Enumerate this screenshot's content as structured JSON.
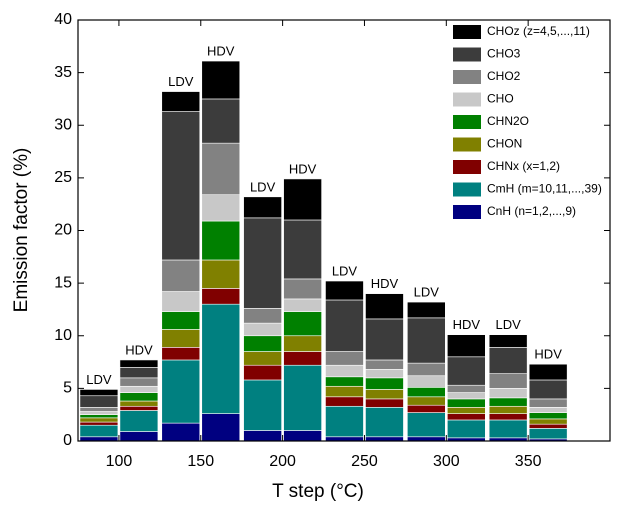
{
  "chart_data": {
    "type": "stacked-bar",
    "x_label": "T step (°C)",
    "y_label": "Emission factor (%)",
    "x": [
      100,
      100,
      150,
      150,
      200,
      200,
      250,
      250,
      300,
      300,
      350,
      350
    ],
    "bar_labels": [
      "LDV",
      "HDV",
      "LDV",
      "HDV",
      "LDV",
      "HDV",
      "LDV",
      "HDV",
      "LDV",
      "HDV",
      "LDV",
      "HDV"
    ],
    "xlim": [
      75,
      400
    ],
    "xticks": [
      100,
      150,
      200,
      250,
      300,
      350
    ],
    "ylim": [
      0,
      40
    ],
    "yticks": [
      0,
      5,
      10,
      15,
      20,
      25,
      30,
      35,
      40
    ],
    "legend": "upper right",
    "series": [
      {
        "name": "CnH (n=1,2,...,9)",
        "color": "#000080",
        "values": [
          0.4,
          0.9,
          1.7,
          2.6,
          1.0,
          1.0,
          0.4,
          0.4,
          0.4,
          0.3,
          0.3,
          0.2
        ]
      },
      {
        "name": "CmH (m=10,11,...,39)",
        "color": "#008080",
        "values": [
          1.1,
          2.0,
          6.0,
          10.4,
          4.8,
          6.2,
          2.9,
          2.8,
          2.3,
          1.7,
          1.7,
          1.0
        ]
      },
      {
        "name": "CHNx (x=1,2)",
        "color": "#800000",
        "values": [
          0.3,
          0.4,
          1.2,
          1.5,
          1.4,
          1.3,
          0.9,
          0.8,
          0.7,
          0.6,
          0.6,
          0.4
        ]
      },
      {
        "name": "CHON",
        "color": "#808000",
        "values": [
          0.4,
          0.5,
          1.7,
          2.7,
          1.3,
          1.5,
          1.0,
          0.9,
          0.8,
          0.6,
          0.7,
          0.5
        ]
      },
      {
        "name": "CHN2O",
        "color": "#008000",
        "values": [
          0.3,
          0.8,
          1.7,
          3.7,
          1.5,
          2.3,
          0.9,
          1.1,
          0.9,
          0.8,
          0.8,
          0.6
        ]
      },
      {
        "name": "CHO",
        "color": "#c8c8c8",
        "values": [
          0.3,
          0.6,
          1.9,
          2.5,
          1.2,
          1.2,
          1.1,
          0.8,
          1.1,
          0.6,
          0.9,
          0.5
        ]
      },
      {
        "name": "CHO2",
        "color": "#828282",
        "values": [
          0.4,
          0.8,
          3.0,
          4.9,
          1.4,
          1.9,
          1.3,
          0.9,
          1.2,
          0.7,
          1.4,
          0.8
        ]
      },
      {
        "name": "CHO3",
        "color": "#3c3c3c",
        "values": [
          1.1,
          1.0,
          14.1,
          4.2,
          8.6,
          5.6,
          4.9,
          3.9,
          4.3,
          2.7,
          2.5,
          1.8
        ]
      },
      {
        "name": "CHOz (z=4,5,...,11)",
        "color": "#000000",
        "values": [
          0.6,
          0.7,
          1.9,
          3.6,
          2.0,
          3.9,
          1.8,
          2.4,
          1.5,
          2.1,
          1.2,
          1.5
        ]
      }
    ]
  }
}
